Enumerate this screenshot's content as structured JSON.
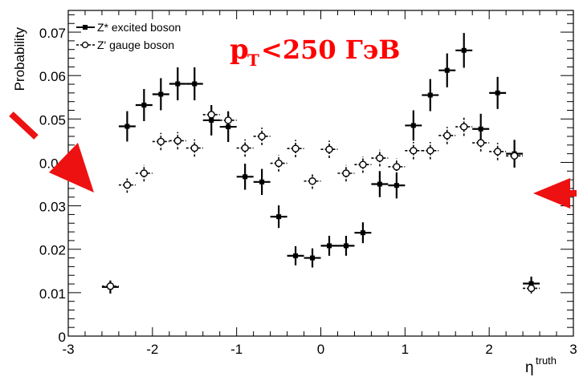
{
  "chart_data": {
    "type": "scatter",
    "title": "",
    "annotation": {
      "main": "p",
      "sub": "T",
      "rest": "<250 ГэВ",
      "color": "#ff0000"
    },
    "xlabel": "η",
    "xlabel_sup": "truth",
    "ylabel": "Probability",
    "xlim": [
      -3,
      3
    ],
    "ylim": [
      0,
      0.075
    ],
    "xticks": [
      "-3",
      "-2",
      "-1",
      "0",
      "1",
      "2",
      "3"
    ],
    "yticks": [
      "0",
      "0.01",
      "0.02",
      "0.03",
      "0.04",
      "0.05",
      "0.06",
      "0.07"
    ],
    "bin_half_width": 0.1,
    "legend_position": "top-left",
    "series": [
      {
        "name": "Z* excited boson",
        "style": "solid",
        "marker": "filled-square",
        "x": [
          -2.5,
          -2.3,
          -2.1,
          -1.9,
          -1.7,
          -1.5,
          -1.3,
          -1.1,
          -0.9,
          -0.7,
          -0.5,
          -0.3,
          -0.1,
          0.1,
          0.3,
          0.5,
          0.7,
          0.9,
          1.1,
          1.3,
          1.5,
          1.7,
          1.9,
          2.1,
          2.3,
          2.5
        ],
        "y": [
          0.0113,
          0.0483,
          0.0532,
          0.0557,
          0.0581,
          0.0581,
          0.0497,
          0.0482,
          0.0367,
          0.0355,
          0.0275,
          0.0185,
          0.018,
          0.0208,
          0.0208,
          0.0238,
          0.035,
          0.0347,
          0.0485,
          0.0555,
          0.0612,
          0.0658,
          0.0477,
          0.056,
          0.042,
          0.0121
        ],
        "err": [
          0.0015,
          0.0035,
          0.0037,
          0.0037,
          0.0038,
          0.0038,
          0.0035,
          0.0035,
          0.003,
          0.003,
          0.0026,
          0.0022,
          0.0022,
          0.0023,
          0.0023,
          0.0024,
          0.003,
          0.003,
          0.0035,
          0.0037,
          0.0039,
          0.004,
          0.0035,
          0.0037,
          0.0032,
          0.0016
        ]
      },
      {
        "name": "Z' gauge boson",
        "style": "dashed",
        "marker": "open-circle",
        "x": [
          -2.5,
          -2.3,
          -2.1,
          -1.9,
          -1.7,
          -1.5,
          -1.3,
          -1.1,
          -0.9,
          -0.7,
          -0.5,
          -0.3,
          -0.1,
          0.1,
          0.3,
          0.5,
          0.7,
          0.9,
          1.1,
          1.3,
          1.5,
          1.7,
          1.9,
          2.1,
          2.3,
          2.5
        ],
        "y": [
          0.0115,
          0.0348,
          0.0375,
          0.0448,
          0.045,
          0.0433,
          0.051,
          0.0497,
          0.0433,
          0.046,
          0.0398,
          0.0432,
          0.0357,
          0.043,
          0.0375,
          0.0395,
          0.041,
          0.039,
          0.0427,
          0.0427,
          0.0462,
          0.0482,
          0.0445,
          0.0425,
          0.0415,
          0.011
        ],
        "err": [
          0.0012,
          0.0018,
          0.0019,
          0.002,
          0.002,
          0.002,
          0.0021,
          0.0021,
          0.002,
          0.002,
          0.0019,
          0.002,
          0.0018,
          0.002,
          0.0019,
          0.0019,
          0.0019,
          0.0019,
          0.002,
          0.002,
          0.002,
          0.0021,
          0.002,
          0.002,
          0.0019,
          0.0012
        ]
      }
    ],
    "arrows_color": "#ee1111"
  }
}
